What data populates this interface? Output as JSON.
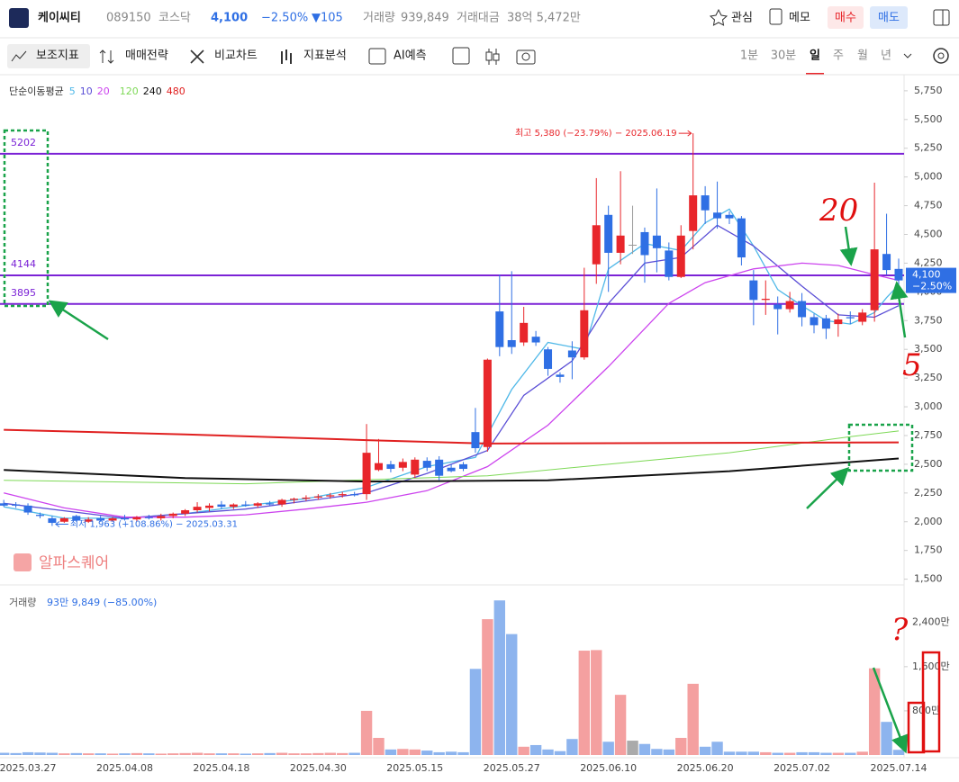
{
  "header": {
    "name": "케이씨티",
    "code": "089150",
    "market": "코스닥",
    "price": "4,100",
    "change_pct": "−2.50%",
    "change": "▼105",
    "volume_label": "거래량",
    "volume": "939,849",
    "amount_label": "거래대금",
    "amount": "38억 5,472만",
    "buttons": [
      "관심",
      "메모",
      "매수",
      "매도"
    ]
  },
  "toolbar": {
    "tools": [
      "보조지표",
      "매매전략",
      "비교차트",
      "지표분석",
      "AI예측"
    ],
    "periods": [
      "1분",
      "30분",
      "일",
      "주",
      "월",
      "년"
    ],
    "active_period": "일"
  },
  "chart_data": [
    {
      "type": "candlestick",
      "categories": [
        null,
        null,
        "2025.03.27",
        null,
        null,
        null,
        null,
        null,
        null,
        null,
        "2025.04.08",
        null,
        null,
        null,
        null,
        null,
        null,
        null,
        "2025.04.18",
        null,
        null,
        null,
        null,
        null,
        null,
        null,
        "2025.04.30",
        null,
        null,
        null,
        null,
        null,
        null,
        null,
        "2025.05.15",
        null,
        null,
        null,
        null,
        null,
        null,
        null,
        "2025.05.27",
        null,
        null,
        null,
        null,
        null,
        null,
        null,
        "2025.06.10",
        null,
        null,
        null,
        null,
        null,
        null,
        null,
        "2025.06.20",
        null,
        null,
        null,
        null,
        null,
        null,
        null,
        "2025.07.02",
        null,
        null,
        null,
        null,
        null,
        null,
        null,
        "2025.07.14"
      ],
      "open": [
        2160,
        2150,
        2140,
        2060,
        2030,
        2000,
        2050,
        2000,
        2030,
        2010,
        2030,
        2020,
        2040,
        2030,
        2050,
        2070,
        2100,
        2120,
        2150,
        2130,
        2150,
        2140,
        2160,
        2150,
        2190,
        2200,
        2210,
        2220,
        2230,
        2240,
        2240,
        2450,
        2500,
        2470,
        2410,
        2530,
        2540,
        2470,
        2500,
        2780,
        2650,
        3830,
        3580,
        3560,
        3610,
        3500,
        3280,
        3490,
        3430,
        4240,
        4670,
        4340,
        4410,
        4520,
        4490,
        4360,
        4130,
        4530,
        4840,
        4690,
        4670,
        4640,
        4100,
        3930,
        3890,
        3850,
        3920,
        3780,
        3770,
        3720,
        3780,
        3740,
        3840,
        4330,
        4200
      ],
      "high": [
        2190,
        2170,
        2160,
        2080,
        2050,
        2040,
        2060,
        2040,
        2050,
        2040,
        2060,
        2050,
        2060,
        2070,
        2080,
        2110,
        2170,
        2160,
        2180,
        2160,
        2180,
        2170,
        2180,
        2200,
        2210,
        2230,
        2240,
        2250,
        2260,
        2260,
        2850,
        2720,
        2530,
        2550,
        2560,
        2560,
        2570,
        2500,
        2520,
        2990,
        3420,
        4150,
        4180,
        3870,
        3660,
        3520,
        3300,
        3570,
        4210,
        4990,
        4750,
        5050,
        4750,
        4560,
        4900,
        4430,
        4580,
        5380,
        4920,
        4960,
        4700,
        4660,
        4190,
        4100,
        3960,
        4000,
        3990,
        3810,
        3800,
        3810,
        3830,
        3850,
        4950,
        4680,
        4290
      ],
      "low": [
        2130,
        2120,
        2060,
        2030,
        1963,
        1990,
        2000,
        1990,
        2000,
        2000,
        2010,
        2000,
        2020,
        2010,
        2030,
        2050,
        2080,
        2090,
        2110,
        2110,
        2130,
        2120,
        2140,
        2130,
        2160,
        2180,
        2190,
        2200,
        2210,
        2220,
        2190,
        2440,
        2430,
        2440,
        2380,
        2440,
        2360,
        2430,
        2440,
        2600,
        2610,
        3440,
        3460,
        3530,
        3530,
        3270,
        3210,
        3240,
        3410,
        4070,
        4000,
        4240,
        4330,
        4080,
        4170,
        4100,
        4120,
        4370,
        4590,
        4550,
        4590,
        4230,
        3710,
        3800,
        3630,
        3820,
        3700,
        3640,
        3590,
        3610,
        3720,
        3710,
        3740,
        4150,
        4050
      ],
      "close": [
        2140,
        2140,
        2080,
        2050,
        1990,
        2030,
        2010,
        2020,
        2010,
        2030,
        2020,
        2040,
        2030,
        2050,
        2070,
        2100,
        2130,
        2140,
        2130,
        2150,
        2140,
        2160,
        2150,
        2190,
        2200,
        2210,
        2220,
        2230,
        2240,
        2230,
        2600,
        2510,
        2460,
        2520,
        2540,
        2470,
        2400,
        2440,
        2460,
        2640,
        3410,
        3520,
        3520,
        3730,
        3560,
        3330,
        3260,
        3430,
        3840,
        4580,
        4340,
        4490,
        4410,
        4320,
        4380,
        4130,
        4490,
        4840,
        4710,
        4640,
        4640,
        4300,
        3930,
        3940,
        3850,
        3920,
        3780,
        3710,
        3680,
        3760,
        3770,
        3820,
        4370,
        4190,
        4100
      ],
      "up_color": "#e8262b",
      "down_color": "#2f6fe4",
      "flat_color": "#999999",
      "ylim": [
        1450,
        5890
      ],
      "yticks": [
        {
          "value": 5750,
          "label": "5,750"
        },
        {
          "value": 5500,
          "label": "5,500"
        },
        {
          "value": 5250,
          "label": "5,250"
        },
        {
          "value": 5000,
          "label": "5,000"
        },
        {
          "value": 4750,
          "label": "4,750"
        },
        {
          "value": 4500,
          "label": "4,500"
        },
        {
          "value": 4250,
          "label": "4,250"
        },
        {
          "value": 4000,
          "label": "4,000"
        },
        {
          "value": 3750,
          "label": "3,750"
        },
        {
          "value": 3500,
          "label": "3,500"
        },
        {
          "value": 3250,
          "label": "3,250"
        },
        {
          "value": 3000,
          "label": "3,000"
        },
        {
          "value": 2750,
          "label": "2,750"
        },
        {
          "value": 2500,
          "label": "2,500"
        },
        {
          "value": 2250,
          "label": "2,250"
        },
        {
          "value": 2000,
          "label": "2,000"
        },
        {
          "value": 1750,
          "label": "1,750"
        },
        {
          "value": 1500,
          "label": "1,500"
        }
      ],
      "legend_title": "단순이동평균",
      "moving_averages": [
        {
          "name": "5",
          "color": "#4fb8e8",
          "x": [
            0,
            5,
            10,
            15,
            20,
            25,
            30,
            35,
            39,
            42,
            45,
            48,
            50,
            53,
            56,
            58,
            60,
            62,
            64,
            66,
            68,
            70,
            72,
            73,
            74
          ],
          "values": [
            2130,
            2030,
            2030,
            2070,
            2140,
            2200,
            2300,
            2480,
            2560,
            3150,
            3560,
            3500,
            4200,
            4420,
            4360,
            4600,
            4720,
            4400,
            4020,
            3880,
            3750,
            3720,
            3820,
            3950,
            4060
          ]
        },
        {
          "name": "10",
          "color": "#5b4fd6",
          "x": [
            0,
            10,
            20,
            30,
            35,
            40,
            43,
            47,
            50,
            53,
            56,
            59,
            62,
            66,
            69,
            72,
            74
          ],
          "values": [
            2160,
            2030,
            2110,
            2250,
            2420,
            2620,
            3100,
            3400,
            3900,
            4250,
            4300,
            4580,
            4400,
            4050,
            3800,
            3780,
            3880
          ]
        },
        {
          "name": "20",
          "color": "#cc44ee",
          "x": [
            0,
            5,
            10,
            15,
            20,
            25,
            30,
            35,
            40,
            45,
            50,
            55,
            58,
            62,
            66,
            69,
            72,
            74
          ],
          "values": [
            2250,
            2120,
            2040,
            2040,
            2060,
            2110,
            2170,
            2270,
            2480,
            2840,
            3350,
            3900,
            4080,
            4200,
            4250,
            4230,
            4150,
            4100
          ]
        },
        {
          "name": "120",
          "color": "#7ed957",
          "x": [
            0,
            20,
            40,
            50,
            60,
            70,
            74
          ],
          "values": [
            2360,
            2330,
            2400,
            2500,
            2600,
            2740,
            2790
          ]
        },
        {
          "name": "240",
          "color": "#111111",
          "x": [
            0,
            15,
            30,
            45,
            60,
            74
          ],
          "values": [
            2450,
            2380,
            2350,
            2360,
            2440,
            2550
          ]
        },
        {
          "name": "480",
          "color": "#e02020",
          "x": [
            0,
            15,
            30,
            40,
            74
          ],
          "values": [
            2800,
            2760,
            2710,
            2680,
            2690
          ]
        }
      ],
      "levels": [
        5202,
        4144,
        3895
      ],
      "level_color": "#7b22d6",
      "high_annotation": "최고 5,380 (−23.79%) − 2025.06.19",
      "low_annotation": "최저 1,963 (+108.86%) − 2025.03.31",
      "watermark": "알파스퀘어",
      "handwritten": [
        "20",
        "5",
        "?"
      ]
    },
    {
      "type": "bar",
      "title": "거래량",
      "subtitle": "93만 9,849 (−85.00%)",
      "values": [
        40,
        35,
        50,
        45,
        40,
        30,
        35,
        30,
        30,
        25,
        30,
        35,
        30,
        25,
        30,
        35,
        40,
        30,
        30,
        30,
        25,
        30,
        35,
        40,
        30,
        30,
        35,
        40,
        35,
        40,
        800,
        310,
        100,
        110,
        100,
        80,
        50,
        60,
        50,
        1560,
        2460,
        2800,
        2190,
        150,
        180,
        100,
        70,
        290,
        1890,
        1900,
        240,
        1090,
        260,
        200,
        110,
        100,
        310,
        1290,
        150,
        240,
        60,
        60,
        60,
        50,
        40,
        40,
        50,
        50,
        40,
        40,
        40,
        60,
        1570,
        600,
        94
      ],
      "up_color": "#f4a0a0",
      "down_color": "#8db4ee",
      "flat_color": "#aaaaaa",
      "ylim": [
        0,
        2950
      ],
      "yticks": [
        {
          "value": 2400,
          "label": "2,400만"
        },
        {
          "value": 1600,
          "label": "1,600만"
        },
        {
          "value": 800,
          "label": "800만"
        }
      ]
    }
  ]
}
